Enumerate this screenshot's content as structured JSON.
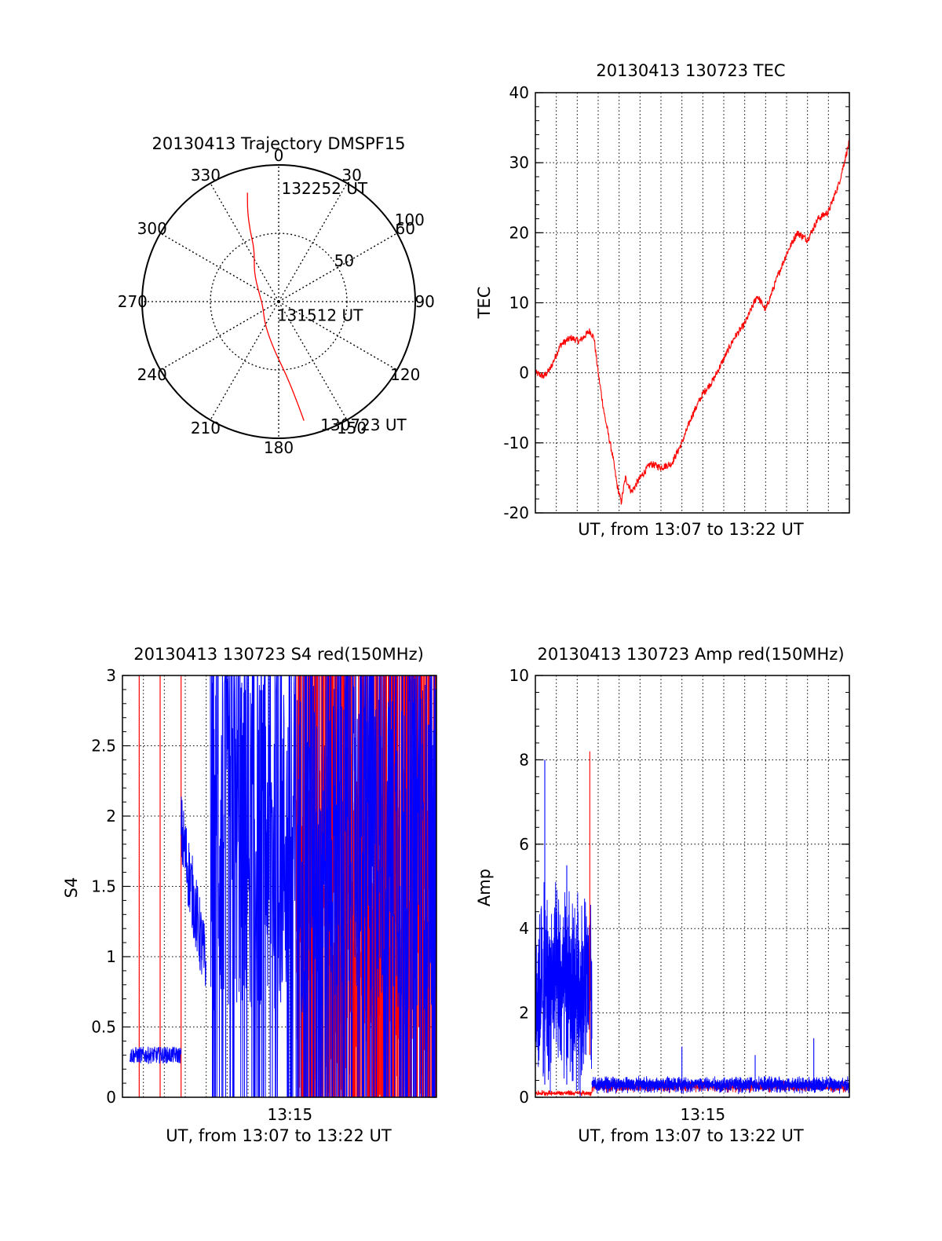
{
  "chart_data": [
    {
      "type": "polar",
      "title": "20130413 Trajectory DMSPF15",
      "azimuth_labels": [
        "0",
        "30",
        "60",
        "90",
        "120",
        "150",
        "180",
        "210",
        "240",
        "270",
        "300",
        "330"
      ],
      "ring_labels": [
        "50",
        "100"
      ],
      "ring_values": [
        50,
        100
      ],
      "r_max": 100,
      "colors": {
        "track": "#ff0000"
      },
      "track": {
        "points": [
          {
            "az": 344,
            "r": 83
          },
          {
            "az": 341,
            "r": 70
          },
          {
            "az": 338,
            "r": 56
          },
          {
            "az": 335,
            "r": 42
          },
          {
            "az": 320,
            "r": 28
          },
          {
            "az": 295,
            "r": 16
          },
          {
            "az": 255,
            "r": 12
          },
          {
            "az": 210,
            "r": 20
          },
          {
            "az": 185,
            "r": 36
          },
          {
            "az": 174,
            "r": 54
          },
          {
            "az": 170,
            "r": 72
          },
          {
            "az": 168,
            "r": 89
          }
        ],
        "labels": [
          {
            "text": "132252 UT",
            "az": 3,
            "r": 83
          },
          {
            "text": "131512 UT",
            "az": 174,
            "r": 10
          },
          {
            "text": "130723 UT",
            "az": 160,
            "r": 96
          }
        ]
      }
    },
    {
      "type": "line",
      "title": "20130413 130723 TEC",
      "xlabel": "UT, from 13:07 to 13:22 UT",
      "ylabel": "TEC",
      "xlim": [
        0,
        15
      ],
      "ylim": [
        -20,
        40
      ],
      "y_ticks": [
        "-20",
        "-10",
        "0",
        "10",
        "20",
        "30",
        "40"
      ],
      "x_ticks": [],
      "grid": true,
      "colors": {
        "line": "#ff0000"
      },
      "x_unit": "minutes after 13:07 UT",
      "series": [
        {
          "color": "#ff0000",
          "x": [
            0,
            0.4,
            0.7,
            1.2,
            1.7,
            2.1,
            2.6,
            2.8,
            3.0,
            3.3,
            3.7,
            3.9,
            4.1,
            4.3,
            4.6,
            5.0,
            5.5,
            6.0,
            6.5,
            7.0,
            7.5,
            8.0,
            8.5,
            9.0,
            9.5,
            10.0,
            10.6,
            11.0,
            11.6,
            12.0,
            12.5,
            13.0,
            13.5,
            14.0,
            14.5,
            15.0
          ],
          "y": [
            0,
            -0.5,
            0.5,
            4,
            5,
            4.5,
            6,
            5,
            0,
            -6,
            -12,
            -16,
            -18.5,
            -15,
            -17,
            -15,
            -13,
            -13.5,
            -13,
            -10,
            -6,
            -3,
            -1,
            2,
            5,
            7,
            11,
            9,
            14,
            17,
            20,
            19,
            22,
            23,
            27,
            33
          ]
        }
      ]
    },
    {
      "type": "line",
      "title": "20130413 130723 S4 red(150MHz)",
      "xlabel": "UT, from 13:07 to 13:22 UT",
      "ylabel": "S4",
      "xlim": [
        0,
        15
      ],
      "ylim": [
        0,
        3
      ],
      "y_ticks": [
        "0",
        "0.5",
        "1",
        "1.5",
        "2",
        "2.5",
        "3"
      ],
      "x_ticks": [
        "13:15"
      ],
      "x_tick_values": [
        8
      ],
      "grid": true,
      "colors": {
        "red": "#ff0000",
        "blue": "#0000ff"
      },
      "x_unit": "minutes after 13:07 UT",
      "red_spikes_x": [
        0.8,
        1.8,
        2.8,
        8.4,
        8.8,
        9.1,
        9.4,
        9.8,
        10.2,
        10.6,
        11.0,
        11.4,
        11.8,
        12.2,
        12.6,
        13.0,
        13.4,
        13.8,
        14.2,
        14.6
      ],
      "blue_segments": [
        {
          "x_from": 0.35,
          "x_to": 2.8,
          "level": 0.3,
          "spread": 0.06
        },
        {
          "x_from": 2.8,
          "x_to": 4.0,
          "level": 1.1,
          "spread": 0.55
        },
        {
          "x_from": 4.2,
          "x_to": 15.0,
          "level": 1.8,
          "spread": 1.2
        }
      ]
    },
    {
      "type": "line",
      "title": "20130413 130723 Amp red(150MHz)",
      "xlabel": "UT, from 13:07 to 13:22 UT",
      "ylabel": "Amp",
      "xlim": [
        0,
        15
      ],
      "ylim": [
        0,
        10
      ],
      "y_ticks": [
        "0",
        "2",
        "4",
        "6",
        "8",
        "10"
      ],
      "x_ticks": [
        "13:15"
      ],
      "x_tick_values": [
        8
      ],
      "grid": true,
      "colors": {
        "red": "#ff0000",
        "blue": "#0000ff"
      },
      "x_unit": "minutes after 13:07 UT",
      "blue_segments": [
        {
          "x_from": 0.0,
          "x_to": 2.7,
          "level": 2.6,
          "spread": 1.8
        },
        {
          "x_from": 2.7,
          "x_to": 15.0,
          "level": 0.3,
          "spread": 0.15
        }
      ],
      "blue_peaks": [
        {
          "x": 0.45,
          "y": 8.0
        },
        {
          "x": 1.5,
          "y": 5.5
        },
        {
          "x": 7.0,
          "y": 1.2
        },
        {
          "x": 10.5,
          "y": 1.0
        },
        {
          "x": 13.3,
          "y": 1.4
        }
      ],
      "red_segments": [
        {
          "x_from": 0.0,
          "x_to": 2.7,
          "level": 0.1,
          "spread": 0.05
        },
        {
          "x_from": 2.7,
          "x_to": 15.0,
          "level": 0.25,
          "spread": 0.1
        }
      ],
      "red_peaks": [
        {
          "x": 2.6,
          "y": 8.2
        }
      ]
    }
  ]
}
